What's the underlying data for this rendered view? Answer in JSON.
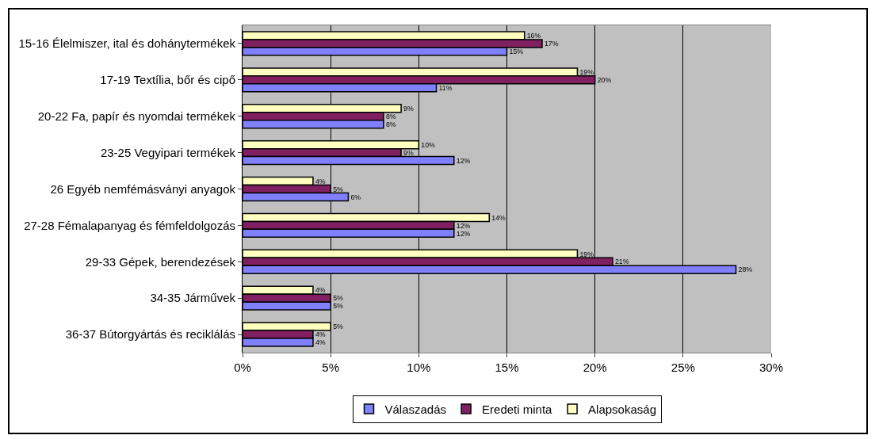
{
  "chart_data": {
    "type": "bar",
    "orientation": "horizontal",
    "categories": [
      "15-16 Élelmiszer, ital és dohánytermékek",
      "17-19 Textília, bőr és cipő",
      "20-22 Fa, papír és nyomdai termékek",
      "23-25 Vegyipari termékek",
      "26 Egyéb nemfémásványi anyagok",
      "27-28 Fémalapanyag és fémfeldolgozás",
      "29-33 Gépek, berendezések",
      "34-35 Járművek",
      "36-37 Bútorgyártás és reciklálás"
    ],
    "series": [
      {
        "name": "Válaszadás",
        "color": "#8080ff",
        "values": [
          15,
          11,
          8,
          12,
          6,
          12,
          28,
          5,
          4
        ],
        "value_labels": [
          "15%",
          "11%",
          "8%",
          "12%",
          "6%",
          "12%",
          "28%",
          "5%",
          "4%"
        ]
      },
      {
        "name": "Eredeti minta",
        "color": "#802060",
        "values": [
          17,
          20,
          8,
          9,
          5,
          12,
          21,
          5,
          4
        ],
        "value_labels": [
          "17%",
          "20%",
          "8%",
          "9%",
          "5%",
          "12%",
          "21%",
          "5%",
          "4%"
        ]
      },
      {
        "name": "Alapsokaság",
        "color": "#ffffc0",
        "values": [
          16,
          19,
          9,
          10,
          4,
          14,
          19,
          4,
          5
        ],
        "value_labels": [
          "16%",
          "19%",
          "9%",
          "10%",
          "4%",
          "14%",
          "19%",
          "4%",
          "5%"
        ]
      }
    ],
    "xlim": [
      0,
      30
    ],
    "xticks": [
      {
        "value": 0,
        "label": "0%"
      },
      {
        "value": 5,
        "label": "5%"
      },
      {
        "value": 10,
        "label": "10%"
      },
      {
        "value": 15,
        "label": "15%"
      },
      {
        "value": 20,
        "label": "20%"
      },
      {
        "value": 25,
        "label": "25%"
      },
      {
        "value": 30,
        "label": "30%"
      }
    ],
    "grid": "x",
    "legend": "bottom"
  }
}
